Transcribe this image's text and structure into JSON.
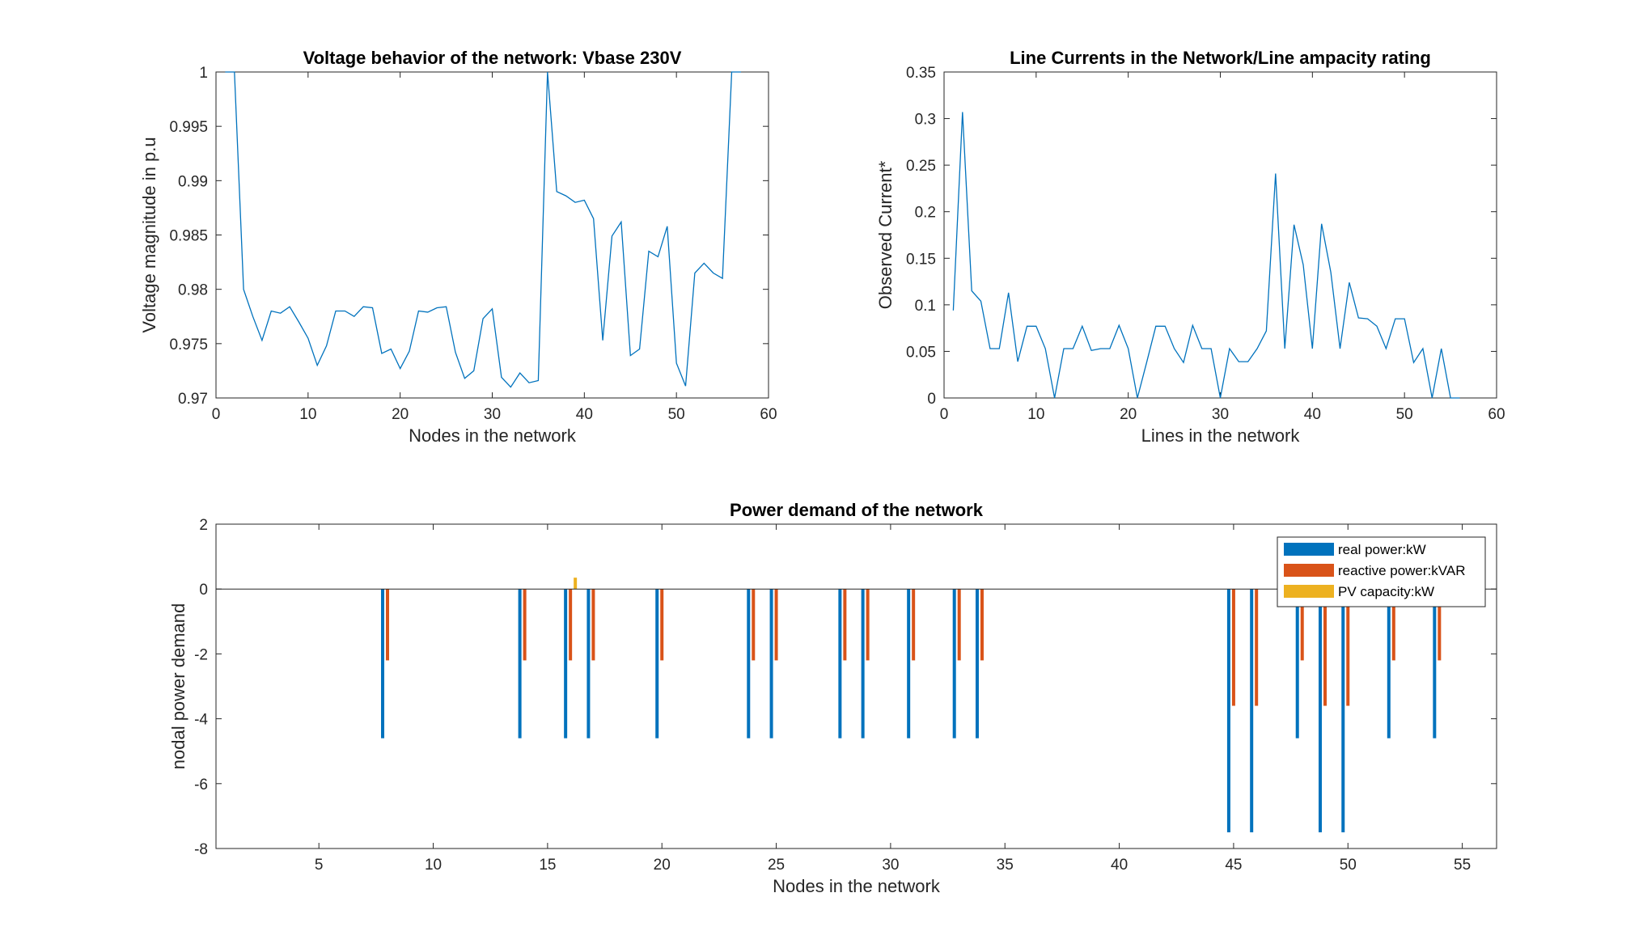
{
  "colors": {
    "background": "#ffffff",
    "axes": "#262626",
    "line": "#0072BD",
    "real_power": "#0072BD",
    "reactive_power": "#D95319",
    "pv_capacity": "#EDB120"
  },
  "chart_data": [
    {
      "id": "voltage",
      "type": "line",
      "title": "Voltage behavior of the network: Vbase 230V",
      "xlabel": "Nodes in the network",
      "ylabel": "Voltage magnitude in p.u",
      "xlim": [
        0,
        60
      ],
      "ylim": [
        0.97,
        1.0
      ],
      "xticks": [
        "0",
        "10",
        "20",
        "30",
        "40",
        "50",
        "60"
      ],
      "yticks": [
        "0.97",
        "0.975",
        "0.98",
        "0.985",
        "0.99",
        "0.995",
        "1"
      ],
      "grid": false,
      "x": [
        1,
        2,
        3,
        4,
        5,
        6,
        7,
        8,
        9,
        10,
        11,
        12,
        13,
        14,
        15,
        16,
        17,
        18,
        19,
        20,
        21,
        22,
        23,
        24,
        25,
        26,
        27,
        28,
        29,
        30,
        31,
        32,
        33,
        34,
        35,
        36,
        37,
        38,
        39,
        40,
        41,
        42,
        43,
        44,
        45,
        46,
        47,
        48,
        49,
        50,
        51,
        52,
        53,
        54,
        55,
        56,
        57
      ],
      "y": [
        1.0,
        1.0,
        0.98,
        0.9775,
        0.9753,
        0.978,
        0.9778,
        0.9784,
        0.977,
        0.9755,
        0.973,
        0.9748,
        0.978,
        0.978,
        0.9775,
        0.9784,
        0.9783,
        0.9741,
        0.9745,
        0.9727,
        0.9743,
        0.978,
        0.9779,
        0.9783,
        0.9784,
        0.9742,
        0.9718,
        0.9725,
        0.9773,
        0.9782,
        0.9719,
        0.971,
        0.9723,
        0.9714,
        0.9716,
        1.0,
        0.989,
        0.9886,
        0.988,
        0.9882,
        0.9865,
        0.9753,
        0.9849,
        0.9862,
        0.9739,
        0.9745,
        0.9835,
        0.983,
        0.9858,
        0.9732,
        0.9711,
        0.9815,
        0.9824,
        0.9815,
        0.981,
        1.0,
        1.0
      ]
    },
    {
      "id": "currents",
      "type": "line",
      "title": "Line Currents in the Network/Line ampacity rating",
      "xlabel": "Lines in the network",
      "ylabel": "Observed Current*",
      "xlim": [
        0,
        60
      ],
      "ylim": [
        0,
        0.35
      ],
      "xticks": [
        "0",
        "10",
        "20",
        "30",
        "40",
        "50",
        "60"
      ],
      "yticks": [
        "0",
        "0.05",
        "0.1",
        "0.15",
        "0.2",
        "0.25",
        "0.3",
        "0.35"
      ],
      "grid": false,
      "x": [
        1,
        2,
        3,
        4,
        5,
        6,
        7,
        8,
        9,
        10,
        11,
        12,
        13,
        14,
        15,
        16,
        17,
        18,
        19,
        20,
        21,
        22,
        23,
        24,
        25,
        26,
        27,
        28,
        29,
        30,
        31,
        32,
        33,
        34,
        35,
        36,
        37,
        38,
        39,
        40,
        41,
        42,
        43,
        44,
        45,
        46,
        47,
        48,
        49,
        50,
        51,
        52,
        53,
        54,
        55,
        56
      ],
      "y": [
        0.094,
        0.307,
        0.115,
        0.104,
        0.053,
        0.053,
        0.113,
        0.039,
        0.077,
        0.077,
        0.053,
        0.0,
        0.053,
        0.053,
        0.077,
        0.051,
        0.053,
        0.053,
        0.078,
        0.053,
        0.0,
        0.038,
        0.077,
        0.077,
        0.053,
        0.038,
        0.078,
        0.053,
        0.053,
        0.0,
        0.053,
        0.039,
        0.039,
        0.053,
        0.072,
        0.241,
        0.053,
        0.186,
        0.143,
        0.053,
        0.187,
        0.135,
        0.053,
        0.124,
        0.086,
        0.085,
        0.077,
        0.053,
        0.085,
        0.085,
        0.038,
        0.053,
        0.0,
        0.053,
        0.0,
        0.0
      ]
    },
    {
      "id": "demand",
      "type": "bar",
      "title": "Power demand of the network",
      "xlabel": "Nodes in the network",
      "ylabel": "nodal power demand",
      "xlim": [
        0.5,
        56.5
      ],
      "ylim": [
        -8,
        2
      ],
      "xticks": [
        "5",
        "10",
        "15",
        "20",
        "25",
        "30",
        "35",
        "40",
        "45",
        "50",
        "55"
      ],
      "yticks": [
        "-8",
        "-6",
        "-4",
        "-2",
        "0",
        "2"
      ],
      "grid": false,
      "legend_position": "top-right",
      "categories": [
        1,
        2,
        3,
        4,
        5,
        6,
        7,
        8,
        9,
        10,
        11,
        12,
        13,
        14,
        15,
        16,
        17,
        18,
        19,
        20,
        21,
        22,
        23,
        24,
        25,
        26,
        27,
        28,
        29,
        30,
        31,
        32,
        33,
        34,
        35,
        36,
        37,
        38,
        39,
        40,
        41,
        42,
        43,
        44,
        45,
        46,
        47,
        48,
        49,
        50,
        51,
        52,
        53,
        54,
        55,
        56
      ],
      "series": [
        {
          "name": "real power:kW",
          "color_key": "real_power",
          "values": [
            0,
            0,
            0,
            0,
            0,
            0,
            0,
            -4.6,
            0,
            0,
            0,
            0,
            0,
            -4.6,
            0,
            -4.6,
            -4.6,
            0,
            0,
            -4.6,
            0,
            0,
            0,
            -4.6,
            -4.6,
            0,
            0,
            -4.6,
            -4.6,
            0,
            -4.6,
            0,
            -4.6,
            -4.6,
            0,
            0,
            0,
            0,
            0,
            0,
            0,
            0,
            0,
            0,
            -7.5,
            -7.5,
            0,
            -4.6,
            -7.5,
            -7.5,
            0,
            -4.6,
            0,
            -4.6,
            0,
            0
          ]
        },
        {
          "name": "reactive power:kVAR",
          "color_key": "reactive_power",
          "values": [
            0,
            0,
            0,
            0,
            0,
            0,
            0,
            -2.2,
            0,
            0,
            0,
            0,
            0,
            -2.2,
            0,
            -2.2,
            -2.2,
            0,
            0,
            -2.2,
            0,
            0,
            0,
            -2.2,
            -2.2,
            0,
            0,
            -2.2,
            -2.2,
            0,
            -2.2,
            0,
            -2.2,
            -2.2,
            0,
            0,
            0,
            0,
            0,
            0,
            0,
            0,
            0,
            0,
            -3.6,
            -3.6,
            0,
            -2.2,
            -3.6,
            -3.6,
            0,
            -2.2,
            0,
            -2.2,
            0,
            0
          ]
        },
        {
          "name": "PV capacity:kW",
          "color_key": "pv_capacity",
          "values": [
            0,
            0,
            0,
            0,
            0,
            0,
            0,
            0,
            0,
            0,
            0,
            0,
            0,
            0,
            0,
            0.35,
            0,
            0,
            0,
            0,
            0,
            0,
            0,
            0,
            0,
            0,
            0,
            0,
            0,
            0,
            0,
            0,
            0,
            0,
            0,
            0,
            0,
            0,
            0,
            0,
            0,
            0,
            0,
            0,
            0,
            0,
            0,
            0,
            0,
            0,
            0,
            0,
            0,
            0,
            0,
            0
          ]
        }
      ]
    }
  ]
}
